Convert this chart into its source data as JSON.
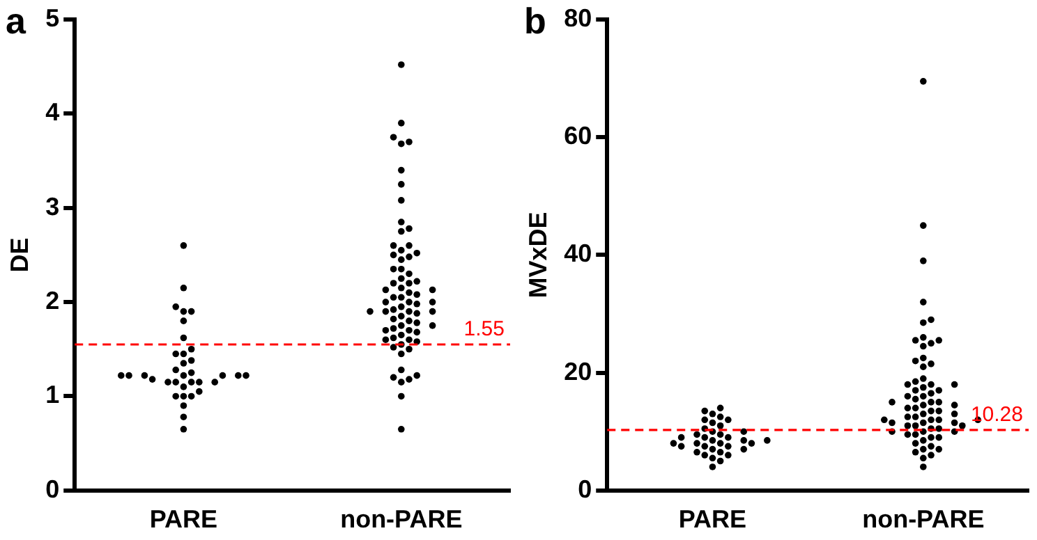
{
  "chart_data": [
    {
      "type": "scatter",
      "title": "a",
      "ylabel": "DE",
      "categories": [
        "PARE",
        "non-PARE"
      ],
      "ylim": [
        0,
        5
      ],
      "yticks": [
        0,
        1,
        2,
        3,
        4,
        5
      ],
      "grid": false,
      "legend": false,
      "marker": "circle",
      "ref_lines": [
        {
          "axis": "y",
          "value": 1.55,
          "label": "1.55",
          "color": "#ff0000",
          "line_style": "dashed"
        }
      ],
      "series": [
        {
          "type": "scatter",
          "color": "#000000",
          "x": [
            "PARE",
            "PARE",
            "PARE",
            "PARE",
            "PARE",
            "PARE",
            "PARE",
            "PARE",
            "PARE",
            "PARE",
            "PARE",
            "PARE",
            "PARE",
            "PARE",
            "PARE",
            "PARE",
            "PARE",
            "PARE",
            "PARE",
            "PARE",
            "PARE",
            "PARE",
            "PARE",
            "PARE",
            "PARE",
            "PARE",
            "PARE",
            "PARE",
            "PARE",
            "PARE",
            "PARE",
            "PARE",
            "PARE",
            "PARE",
            "PARE"
          ],
          "values": [
            2.6,
            2.15,
            1.95,
            1.9,
            1.9,
            1.8,
            1.62,
            1.5,
            1.45,
            1.45,
            1.38,
            1.35,
            1.28,
            1.25,
            1.22,
            1.22,
            1.22,
            1.22,
            1.22,
            1.22,
            1.22,
            1.18,
            1.15,
            1.15,
            1.15,
            1.15,
            1.15,
            1.1,
            1.05,
            1.0,
            1.0,
            1.0,
            0.9,
            0.78,
            0.65
          ]
        },
        {
          "type": "scatter",
          "color": "#000000",
          "x": [
            "non-PARE",
            "non-PARE",
            "non-PARE",
            "non-PARE",
            "non-PARE",
            "non-PARE",
            "non-PARE",
            "non-PARE",
            "non-PARE",
            "non-PARE",
            "non-PARE",
            "non-PARE",
            "non-PARE",
            "non-PARE",
            "non-PARE",
            "non-PARE",
            "non-PARE",
            "non-PARE",
            "non-PARE",
            "non-PARE",
            "non-PARE",
            "non-PARE",
            "non-PARE",
            "non-PARE",
            "non-PARE",
            "non-PARE",
            "non-PARE",
            "non-PARE",
            "non-PARE",
            "non-PARE",
            "non-PARE",
            "non-PARE",
            "non-PARE",
            "non-PARE",
            "non-PARE",
            "non-PARE",
            "non-PARE",
            "non-PARE",
            "non-PARE",
            "non-PARE",
            "non-PARE",
            "non-PARE",
            "non-PARE",
            "non-PARE",
            "non-PARE",
            "non-PARE",
            "non-PARE",
            "non-PARE",
            "non-PARE",
            "non-PARE",
            "non-PARE",
            "non-PARE",
            "non-PARE",
            "non-PARE",
            "non-PARE",
            "non-PARE",
            "non-PARE",
            "non-PARE",
            "non-PARE",
            "non-PARE",
            "non-PARE",
            "non-PARE",
            "non-PARE",
            "non-PARE",
            "non-PARE",
            "non-PARE",
            "non-PARE",
            "non-PARE",
            "non-PARE"
          ],
          "values": [
            4.52,
            3.9,
            3.75,
            3.7,
            3.68,
            3.4,
            3.25,
            3.08,
            2.85,
            2.78,
            2.75,
            2.6,
            2.6,
            2.55,
            2.52,
            2.5,
            2.48,
            2.45,
            2.35,
            2.35,
            2.3,
            2.25,
            2.22,
            2.2,
            2.2,
            2.15,
            2.13,
            2.13,
            2.1,
            2.08,
            2.05,
            2.05,
            2.0,
            2.0,
            2.0,
            1.98,
            1.95,
            1.92,
            1.9,
            1.9,
            1.9,
            1.9,
            1.88,
            1.85,
            1.82,
            1.8,
            1.78,
            1.75,
            1.75,
            1.72,
            1.7,
            1.7,
            1.68,
            1.65,
            1.62,
            1.6,
            1.6,
            1.58,
            1.55,
            1.52,
            1.5,
            1.45,
            1.28,
            1.22,
            1.2,
            1.18,
            1.15,
            1.0,
            0.65
          ]
        }
      ]
    },
    {
      "type": "scatter",
      "title": "b",
      "ylabel": "MVxDE",
      "categories": [
        "PARE",
        "non-PARE"
      ],
      "ylim": [
        0,
        80
      ],
      "yticks": [
        0,
        20,
        40,
        60,
        80
      ],
      "grid": false,
      "legend": false,
      "marker": "circle",
      "ref_lines": [
        {
          "axis": "y",
          "value": 10.28,
          "label": "10.28",
          "color": "#ff0000",
          "line_style": "dashed"
        }
      ],
      "series": [
        {
          "type": "scatter",
          "color": "#000000",
          "x": [
            "PARE",
            "PARE",
            "PARE",
            "PARE",
            "PARE",
            "PARE",
            "PARE",
            "PARE",
            "PARE",
            "PARE",
            "PARE",
            "PARE",
            "PARE",
            "PARE",
            "PARE",
            "PARE",
            "PARE",
            "PARE",
            "PARE",
            "PARE",
            "PARE",
            "PARE",
            "PARE",
            "PARE",
            "PARE",
            "PARE",
            "PARE",
            "PARE",
            "PARE",
            "PARE",
            "PARE",
            "PARE",
            "PARE",
            "PARE",
            "PARE"
          ],
          "values": [
            14,
            13.5,
            13,
            12.5,
            12,
            12,
            11.5,
            11,
            10.5,
            10,
            10,
            9.5,
            9.5,
            9,
            9,
            9,
            8.5,
            8.5,
            8.5,
            8,
            8,
            8,
            8,
            7.5,
            7.5,
            7.5,
            7,
            7,
            6.5,
            6.5,
            6,
            6,
            5.5,
            5,
            4
          ]
        },
        {
          "type": "scatter",
          "color": "#000000",
          "x": [
            "non-PARE",
            "non-PARE",
            "non-PARE",
            "non-PARE",
            "non-PARE",
            "non-PARE",
            "non-PARE",
            "non-PARE",
            "non-PARE",
            "non-PARE",
            "non-PARE",
            "non-PARE",
            "non-PARE",
            "non-PARE",
            "non-PARE",
            "non-PARE",
            "non-PARE",
            "non-PARE",
            "non-PARE",
            "non-PARE",
            "non-PARE",
            "non-PARE",
            "non-PARE",
            "non-PARE",
            "non-PARE",
            "non-PARE",
            "non-PARE",
            "non-PARE",
            "non-PARE",
            "non-PARE",
            "non-PARE",
            "non-PARE",
            "non-PARE",
            "non-PARE",
            "non-PARE",
            "non-PARE",
            "non-PARE",
            "non-PARE",
            "non-PARE",
            "non-PARE",
            "non-PARE",
            "non-PARE",
            "non-PARE",
            "non-PARE",
            "non-PARE",
            "non-PARE",
            "non-PARE",
            "non-PARE",
            "non-PARE",
            "non-PARE",
            "non-PARE",
            "non-PARE",
            "non-PARE",
            "non-PARE",
            "non-PARE",
            "non-PARE",
            "non-PARE",
            "non-PARE",
            "non-PARE",
            "non-PARE",
            "non-PARE",
            "non-PARE",
            "non-PARE",
            "non-PARE",
            "non-PARE",
            "non-PARE",
            "non-PARE",
            "non-PARE"
          ],
          "values": [
            69.5,
            45,
            39,
            32,
            29,
            28.5,
            26,
            25.5,
            25.5,
            25,
            24.5,
            22.5,
            22,
            21.5,
            21,
            19,
            18.5,
            18,
            18,
            18,
            17.5,
            17,
            17,
            16.5,
            16,
            16,
            15.5,
            15,
            15,
            15,
            14.5,
            14.5,
            14,
            14,
            13.5,
            13.5,
            13,
            13,
            12.5,
            12.5,
            12,
            12,
            12,
            12,
            11.5,
            11.5,
            11.5,
            11,
            11,
            11,
            10.5,
            10.5,
            10,
            10,
            10,
            9.5,
            9.5,
            9,
            9,
            8.5,
            8,
            7.5,
            7,
            7,
            6.5,
            6,
            5.5,
            4
          ]
        }
      ]
    }
  ]
}
